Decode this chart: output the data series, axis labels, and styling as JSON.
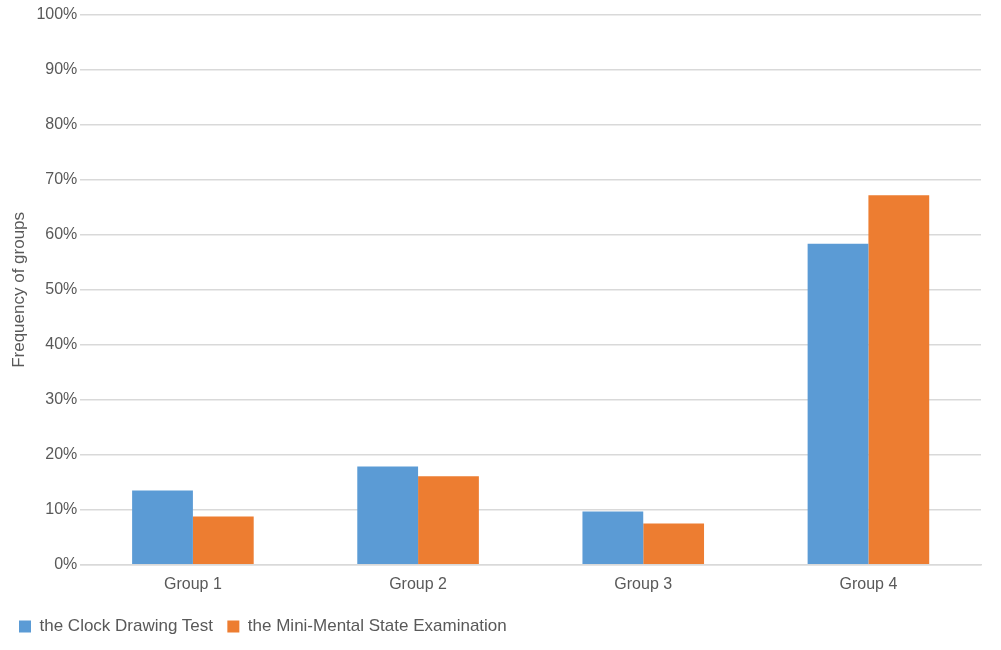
{
  "chart_data": {
    "type": "bar",
    "ylabel": "Frequency of groups",
    "categories": [
      "Group 1",
      "Group 2",
      "Group 3",
      "Group 4"
    ],
    "series": [
      {
        "name": "the Clock Drawing Test",
        "color": "#5b9bd5",
        "values": [
          13.5,
          17.9,
          9.7,
          58.4
        ]
      },
      {
        "name": "the Mini-Mental State Examination",
        "color": "#ed7d31",
        "values": [
          8.8,
          16.1,
          7.5,
          67.2
        ]
      }
    ],
    "ylim": [
      0,
      100
    ],
    "yticks": [
      {
        "value": 0,
        "label": "0%"
      },
      {
        "value": 10,
        "label": "10%"
      },
      {
        "value": 20,
        "label": "20%"
      },
      {
        "value": 30,
        "label": "30%"
      },
      {
        "value": 40,
        "label": "40%"
      },
      {
        "value": 50,
        "label": "50%"
      },
      {
        "value": 60,
        "label": "60%"
      },
      {
        "value": 70,
        "label": "70%"
      },
      {
        "value": 80,
        "label": "80%"
      },
      {
        "value": 90,
        "label": "90%"
      },
      {
        "value": 100,
        "label": "100%"
      }
    ],
    "grid": "y",
    "legend": "bottom left"
  }
}
